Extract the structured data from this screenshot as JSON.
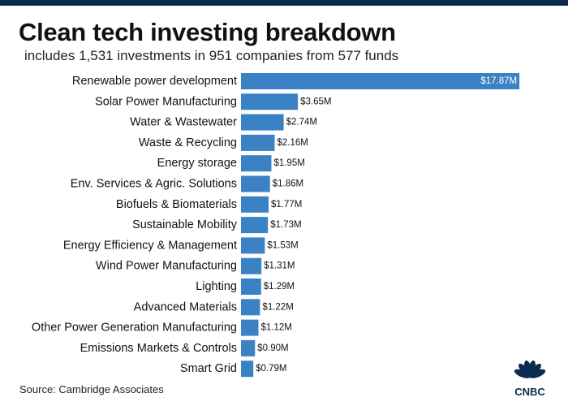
{
  "title": "Clean tech investing breakdown",
  "subtitle": "includes 1,531 investments in 951 companies from 577 funds",
  "source": "Source: Cambridge Associates",
  "logo_text": "CNBC",
  "colors": {
    "bar": "#3a82c4",
    "top_bar": "#0a2b4d",
    "text": "#111111",
    "value_label_inside": "#ffffff"
  },
  "chart_data": {
    "type": "bar",
    "orientation": "horizontal",
    "categories": [
      "Renewable power development",
      "Solar Power Manufacturing",
      "Water & Wastewater",
      "Waste & Recycling",
      "Energy storage",
      "Env. Services & Agric. Solutions",
      "Biofuels & Biomaterials",
      "Sustainable Mobility",
      "Energy Efficiency & Management",
      "Wind Power Manufacturing",
      "Lighting",
      "Advanced Materials",
      "Other Power Generation Manufacturing",
      "Emissions Markets & Controls",
      "Smart Grid"
    ],
    "values": [
      17.87,
      3.65,
      2.74,
      2.16,
      1.95,
      1.86,
      1.77,
      1.73,
      1.53,
      1.31,
      1.29,
      1.22,
      1.12,
      0.9,
      0.79
    ],
    "value_labels": [
      "$17.87M",
      "$3.65M",
      "$2.74M",
      "$2.16M",
      "$1.95M",
      "$1.86M",
      "$1.77M",
      "$1.73M",
      "$1.53M",
      "$1.31M",
      "$1.29M",
      "$1.22M",
      "$1.12M",
      "$0.90M",
      "$0.79M"
    ],
    "title": "Clean tech investing breakdown",
    "xlabel": "",
    "ylabel": "",
    "grid": false,
    "legend": "none"
  }
}
